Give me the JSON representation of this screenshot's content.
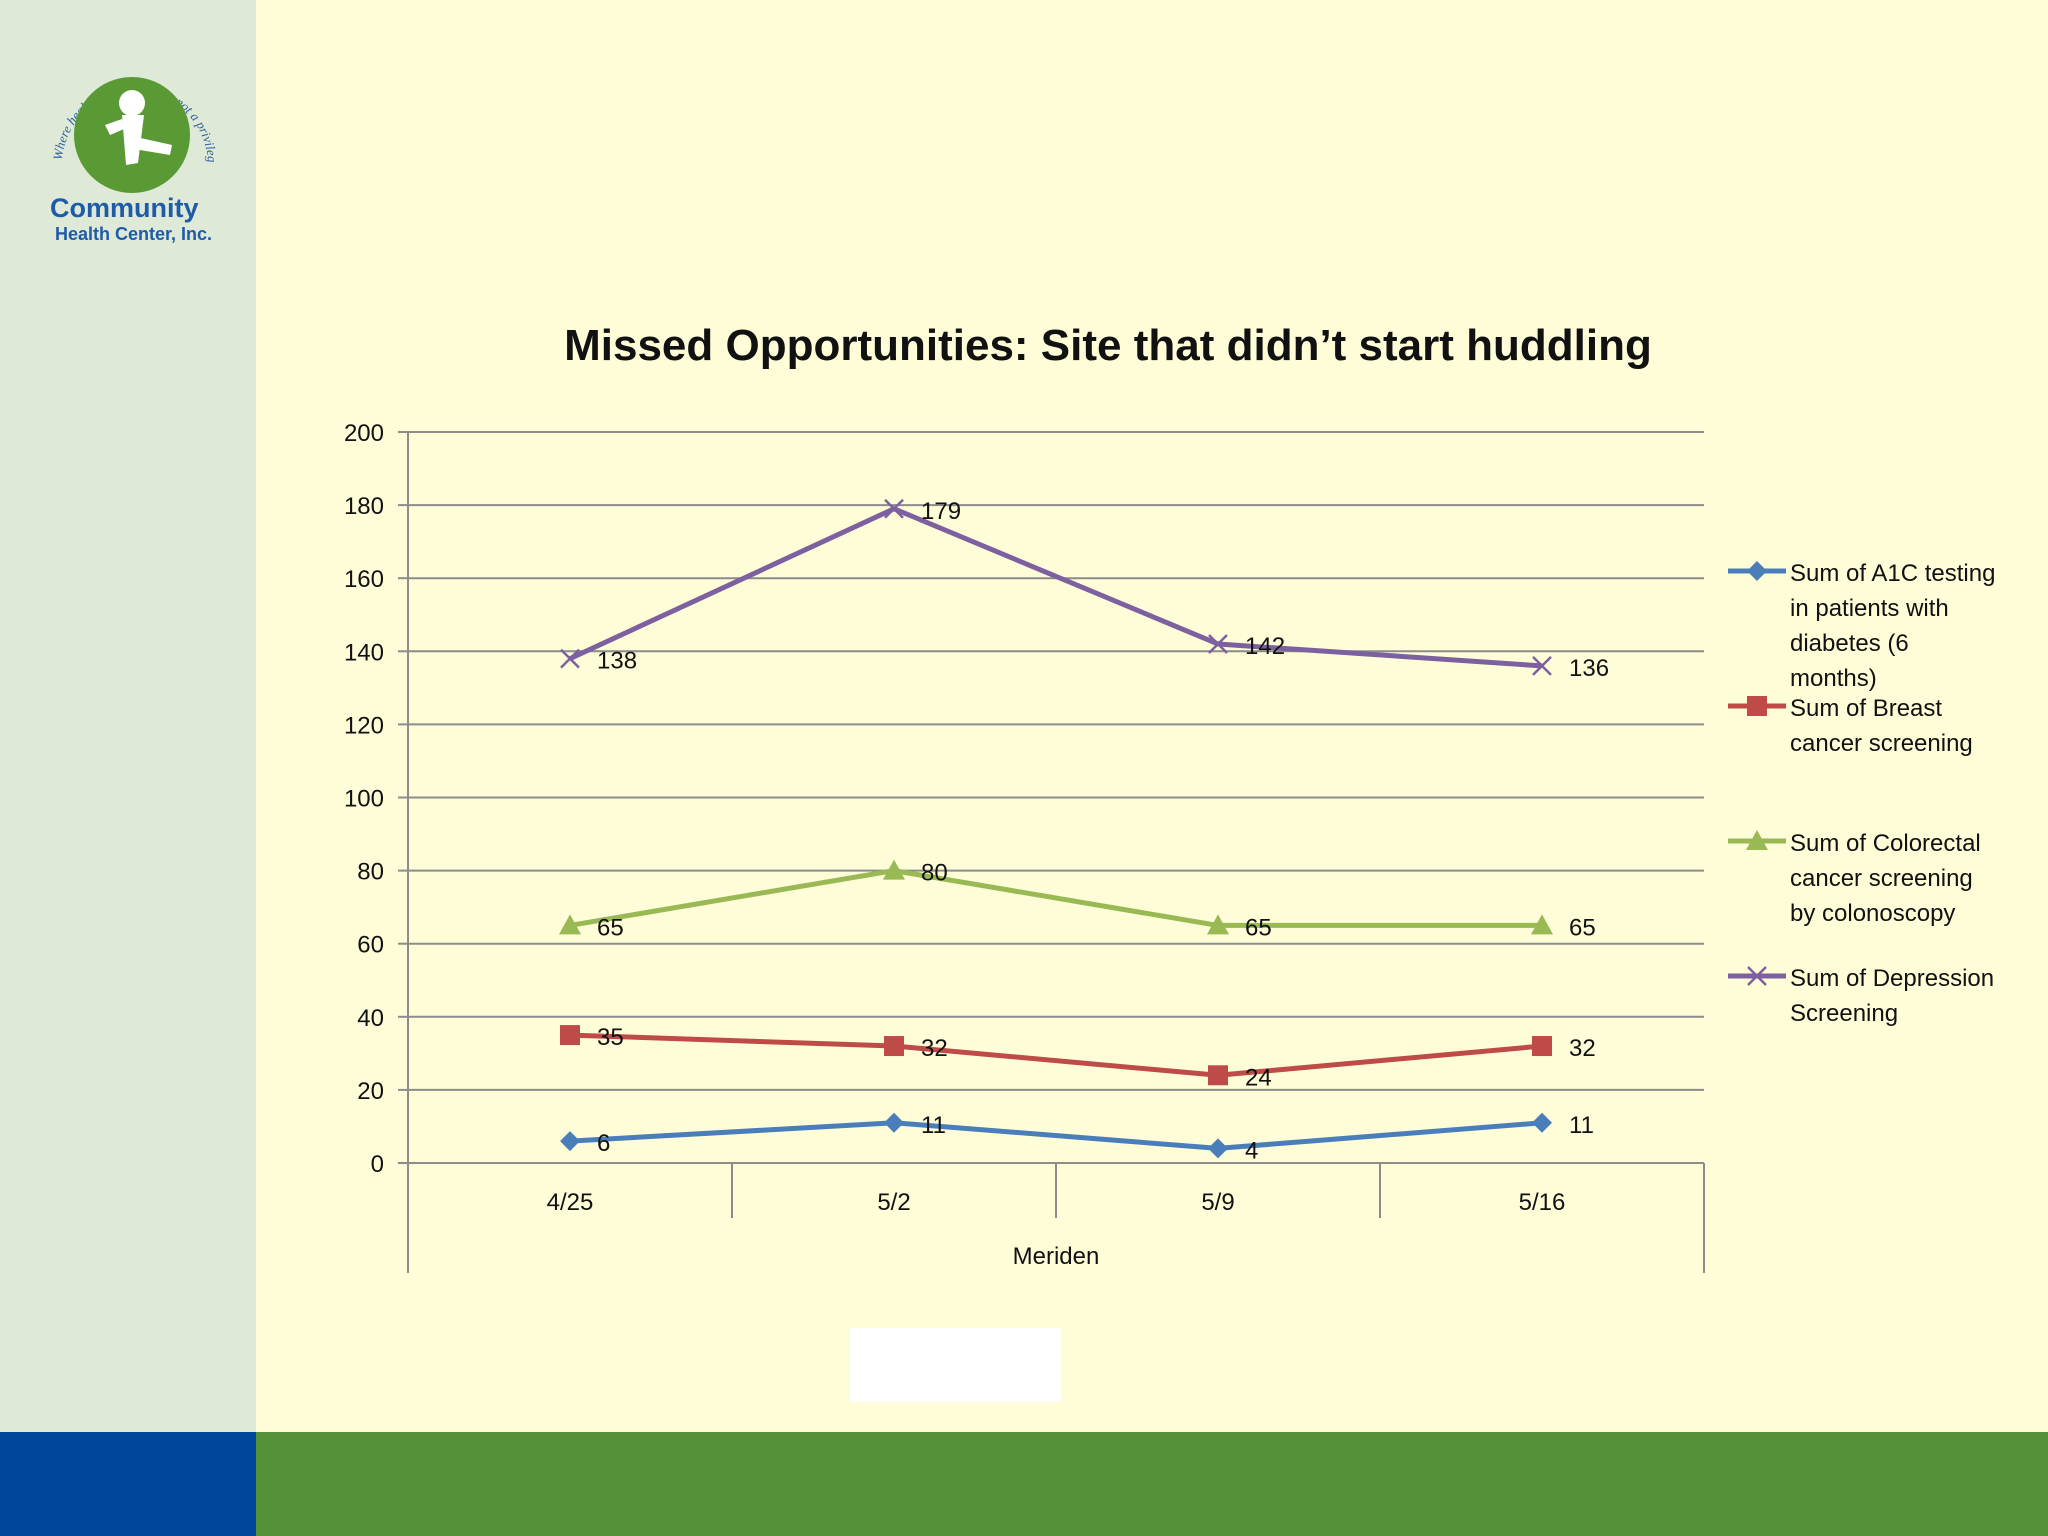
{
  "logo": {
    "tagline": "Where health care is a right, not a privilege since 1972",
    "name_line1": "Community",
    "name_line2": "Health Center, Inc."
  },
  "colors": {
    "background": "#FFFDD8",
    "sidebar": "#DEE9D7",
    "footer_blue": "#00479A",
    "footer_green": "#539236"
  },
  "chart_data": {
    "type": "line",
    "title": "Missed Opportunities: Site that didn’t start huddling",
    "categories": [
      "4/25",
      "5/2",
      "5/9",
      "5/16"
    ],
    "xlabel": "Meriden",
    "ylabel": "",
    "ylim": [
      0,
      200
    ],
    "yticks": [
      "0",
      "20",
      "40",
      "60",
      "80",
      "100",
      "120",
      "140",
      "160",
      "180",
      "200"
    ],
    "grid": true,
    "legend_position": "right",
    "series": [
      {
        "name": "Sum of A1C testing in patients with diabetes (6 months)",
        "legend_lines": [
          "Sum of A1C testing",
          "in patients with",
          "diabetes (6",
          "months)"
        ],
        "values": [
          6,
          11,
          4,
          11
        ],
        "color": "#4A7EBB",
        "marker": "diamond"
      },
      {
        "name": "Sum of Breast cancer screening",
        "legend_lines": [
          "Sum of Breast",
          "cancer screening"
        ],
        "values": [
          35,
          32,
          24,
          32
        ],
        "color": "#BE4B48",
        "marker": "square"
      },
      {
        "name": "Sum of Colorectal cancer screening by colonoscopy",
        "legend_lines": [
          "Sum of Colorectal",
          "cancer screening",
          "by colonoscopy"
        ],
        "values": [
          65,
          80,
          65,
          65
        ],
        "color": "#98B954",
        "marker": "triangle"
      },
      {
        "name": "Sum of Depression Screening",
        "legend_lines": [
          "Sum of Depression",
          "Screening"
        ],
        "values": [
          138,
          179,
          142,
          136
        ],
        "color": "#7D60A0",
        "marker": "x"
      }
    ]
  }
}
